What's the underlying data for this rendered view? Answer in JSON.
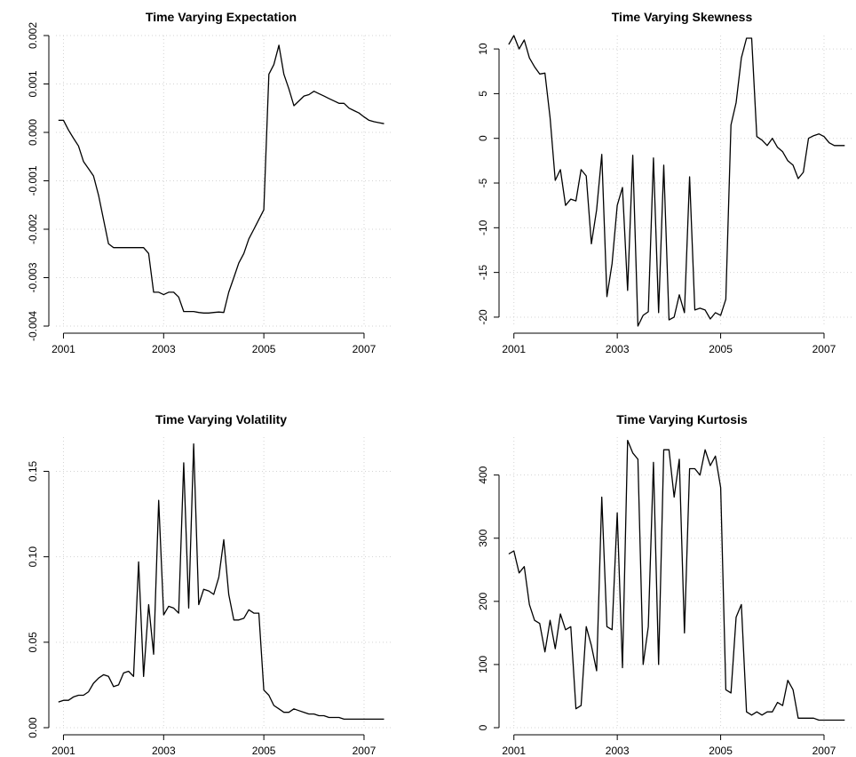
{
  "chart_data": [
    {
      "type": "line",
      "title": "Time Varying Expectation",
      "xlabel": "",
      "ylabel": "",
      "xlim": [
        2000.85,
        2007.55
      ],
      "ylim": [
        -0.004,
        0.002
      ],
      "x_ticks": [
        2001,
        2003,
        2005,
        2007
      ],
      "x_tick_labels": [
        "2001",
        "2003",
        "2005",
        "2007"
      ],
      "y_ticks": [
        -0.004,
        -0.003,
        -0.002,
        -0.001,
        0.0,
        0.001,
        0.002
      ],
      "y_tick_labels": [
        "-0.004",
        "-0.003",
        "-0.002",
        "-0.001",
        "0.000",
        "0.001",
        "0.002"
      ],
      "grid": true,
      "series": [
        {
          "x": [
            2000.9,
            2001.0,
            2001.1,
            2001.2,
            2001.3,
            2001.4,
            2001.5,
            2001.6,
            2001.7,
            2001.8,
            2001.9,
            2002.0,
            2002.1,
            2002.2,
            2002.3,
            2002.4,
            2002.5,
            2002.6,
            2002.7,
            2002.8,
            2002.9,
            2003.0,
            2003.1,
            2003.2,
            2003.3,
            2003.4,
            2003.5,
            2003.6,
            2003.7,
            2003.8,
            2003.9,
            2004.0,
            2004.1,
            2004.2,
            2004.3,
            2004.4,
            2004.5,
            2004.6,
            2004.7,
            2004.8,
            2004.9,
            2005.0,
            2005.1,
            2005.2,
            2005.3,
            2005.4,
            2005.5,
            2005.6,
            2005.7,
            2005.8,
            2005.9,
            2006.0,
            2006.1,
            2006.2,
            2006.3,
            2006.4,
            2006.5,
            2006.6,
            2006.7,
            2006.8,
            2006.9,
            2007.0,
            2007.1,
            2007.2,
            2007.3,
            2007.4
          ],
          "y": [
            0.00025,
            0.00025,
            5e-05,
            -0.00012,
            -0.00028,
            -0.0006,
            -0.00075,
            -0.0009,
            -0.0013,
            -0.0018,
            -0.0023,
            -0.00238,
            -0.00238,
            -0.00238,
            -0.00238,
            -0.00238,
            -0.00238,
            -0.00238,
            -0.0025,
            -0.0033,
            -0.0033,
            -0.00335,
            -0.0033,
            -0.0033,
            -0.0034,
            -0.0037,
            -0.0037,
            -0.0037,
            -0.00372,
            -0.00373,
            -0.00373,
            -0.00372,
            -0.00371,
            -0.00372,
            -0.0033,
            -0.003,
            -0.0027,
            -0.0025,
            -0.0022,
            -0.002,
            -0.0018,
            -0.0016,
            0.0012,
            0.0014,
            0.0018,
            0.0012,
            0.0009,
            0.00055,
            0.00065,
            0.00075,
            0.00078,
            0.00085,
            0.0008,
            0.00075,
            0.0007,
            0.00065,
            0.0006,
            0.0006,
            0.0005,
            0.00045,
            0.0004,
            0.00032,
            0.00025,
            0.00022,
            0.0002,
            0.00018
          ]
        }
      ]
    },
    {
      "type": "line",
      "title": "Time Varying Skewness",
      "xlabel": "",
      "ylabel": "",
      "xlim": [
        2000.85,
        2007.55
      ],
      "ylim": [
        -21,
        11.5
      ],
      "x_ticks": [
        2001,
        2003,
        2005,
        2007
      ],
      "x_tick_labels": [
        "2001",
        "2003",
        "2005",
        "2007"
      ],
      "y_ticks": [
        -20,
        -15,
        -10,
        -5,
        0,
        5,
        10
      ],
      "y_tick_labels": [
        "-20",
        "-15",
        "-10",
        "-5",
        "0",
        "5",
        "10"
      ],
      "grid": true,
      "series": [
        {
          "x": [
            2000.9,
            2001.0,
            2001.1,
            2001.2,
            2001.3,
            2001.4,
            2001.5,
            2001.6,
            2001.7,
            2001.8,
            2001.9,
            2002.0,
            2002.1,
            2002.2,
            2002.3,
            2002.4,
            2002.5,
            2002.6,
            2002.7,
            2002.8,
            2002.9,
            2003.0,
            2003.1,
            2003.2,
            2003.3,
            2003.4,
            2003.5,
            2003.6,
            2003.7,
            2003.8,
            2003.9,
            2004.0,
            2004.1,
            2004.2,
            2004.3,
            2004.4,
            2004.5,
            2004.6,
            2004.7,
            2004.8,
            2004.9,
            2005.0,
            2005.1,
            2005.2,
            2005.3,
            2005.4,
            2005.5,
            2005.6,
            2005.7,
            2005.8,
            2005.9,
            2006.0,
            2006.1,
            2006.2,
            2006.3,
            2006.4,
            2006.5,
            2006.6,
            2006.7,
            2006.8,
            2006.9,
            2007.0,
            2007.1,
            2007.2,
            2007.3,
            2007.4
          ],
          "y": [
            10.5,
            11.5,
            10.0,
            11.0,
            9.0,
            8.0,
            7.2,
            7.3,
            2.3,
            -4.7,
            -3.5,
            -7.5,
            -6.8,
            -7.0,
            -3.5,
            -4.2,
            -11.8,
            -8.0,
            -1.8,
            -17.7,
            -14.0,
            -7.5,
            -5.5,
            -17.0,
            -1.9,
            -21.0,
            -19.8,
            -19.4,
            -2.2,
            -19.5,
            -3.0,
            -20.3,
            -20.0,
            -17.5,
            -19.5,
            -4.3,
            -19.2,
            -19.0,
            -19.2,
            -20.2,
            -19.5,
            -19.8,
            -18.0,
            1.5,
            4.0,
            9.0,
            11.2,
            11.2,
            0.2,
            -0.2,
            -0.8,
            0.0,
            -1.0,
            -1.5,
            -2.5,
            -3.0,
            -4.5,
            -3.8,
            0.0,
            0.3,
            0.5,
            0.2,
            -0.5,
            -0.8,
            -0.8,
            -0.8
          ]
        }
      ]
    },
    {
      "type": "line",
      "title": "Time Varying Volatility",
      "xlabel": "",
      "ylabel": "",
      "xlim": [
        2000.85,
        2007.55
      ],
      "ylim": [
        0.0,
        0.17
      ],
      "x_ticks": [
        2001,
        2003,
        2005,
        2007
      ],
      "x_tick_labels": [
        "2001",
        "2003",
        "2005",
        "2007"
      ],
      "y_ticks": [
        0.0,
        0.05,
        0.1,
        0.15
      ],
      "y_tick_labels": [
        "0.00",
        "0.05",
        "0.10",
        "0.15"
      ],
      "grid": true,
      "series": [
        {
          "x": [
            2000.9,
            2001.0,
            2001.1,
            2001.2,
            2001.3,
            2001.4,
            2001.5,
            2001.6,
            2001.7,
            2001.8,
            2001.9,
            2002.0,
            2002.1,
            2002.2,
            2002.3,
            2002.4,
            2002.5,
            2002.6,
            2002.7,
            2002.8,
            2002.9,
            2003.0,
            2003.1,
            2003.2,
            2003.3,
            2003.4,
            2003.5,
            2003.6,
            2003.7,
            2003.8,
            2003.9,
            2004.0,
            2004.1,
            2004.2,
            2004.3,
            2004.4,
            2004.5,
            2004.6,
            2004.7,
            2004.8,
            2004.9,
            2005.0,
            2005.1,
            2005.2,
            2005.3,
            2005.4,
            2005.5,
            2005.6,
            2005.7,
            2005.8,
            2005.9,
            2006.0,
            2006.1,
            2006.2,
            2006.3,
            2006.4,
            2006.5,
            2006.6,
            2006.7,
            2006.8,
            2006.9,
            2007.0,
            2007.1,
            2007.2,
            2007.3,
            2007.4
          ],
          "y": [
            0.015,
            0.016,
            0.016,
            0.018,
            0.019,
            0.019,
            0.021,
            0.026,
            0.029,
            0.031,
            0.03,
            0.024,
            0.025,
            0.032,
            0.033,
            0.03,
            0.097,
            0.03,
            0.072,
            0.043,
            0.133,
            0.066,
            0.071,
            0.07,
            0.067,
            0.155,
            0.07,
            0.166,
            0.072,
            0.081,
            0.08,
            0.078,
            0.088,
            0.11,
            0.078,
            0.063,
            0.063,
            0.064,
            0.069,
            0.067,
            0.067,
            0.022,
            0.019,
            0.013,
            0.011,
            0.009,
            0.009,
            0.011,
            0.01,
            0.009,
            0.008,
            0.008,
            0.007,
            0.007,
            0.006,
            0.006,
            0.006,
            0.005,
            0.005,
            0.005,
            0.005,
            0.005,
            0.005,
            0.005,
            0.005,
            0.005
          ]
        }
      ]
    },
    {
      "type": "line",
      "title": "Time Varying Kurtosis",
      "xlabel": "",
      "ylabel": "",
      "xlim": [
        2000.85,
        2007.55
      ],
      "ylim": [
        0,
        460
      ],
      "x_ticks": [
        2001,
        2003,
        2005,
        2007
      ],
      "x_tick_labels": [
        "2001",
        "2003",
        "2005",
        "2007"
      ],
      "y_ticks": [
        0,
        100,
        200,
        300,
        400
      ],
      "y_tick_labels": [
        "0",
        "100",
        "200",
        "300",
        "400"
      ],
      "grid": true,
      "series": [
        {
          "x": [
            2000.9,
            2001.0,
            2001.1,
            2001.2,
            2001.3,
            2001.4,
            2001.5,
            2001.6,
            2001.7,
            2001.8,
            2001.9,
            2002.0,
            2002.1,
            2002.2,
            2002.3,
            2002.4,
            2002.5,
            2002.6,
            2002.7,
            2002.8,
            2002.9,
            2003.0,
            2003.1,
            2003.2,
            2003.3,
            2003.4,
            2003.5,
            2003.6,
            2003.7,
            2003.8,
            2003.9,
            2004.0,
            2004.1,
            2004.2,
            2004.3,
            2004.4,
            2004.5,
            2004.6,
            2004.7,
            2004.8,
            2004.9,
            2005.0,
            2005.1,
            2005.2,
            2005.3,
            2005.4,
            2005.5,
            2005.6,
            2005.7,
            2005.8,
            2005.9,
            2006.0,
            2006.1,
            2006.2,
            2006.3,
            2006.4,
            2006.5,
            2006.6,
            2006.7,
            2006.8,
            2006.9,
            2007.0,
            2007.1,
            2007.2,
            2007.3,
            2007.4
          ],
          "y": [
            275,
            280,
            245,
            255,
            195,
            170,
            165,
            120,
            170,
            125,
            180,
            155,
            160,
            30,
            35,
            160,
            130,
            90,
            365,
            160,
            155,
            340,
            95,
            455,
            435,
            425,
            100,
            160,
            420,
            100,
            440,
            440,
            365,
            425,
            150,
            410,
            410,
            400,
            440,
            415,
            430,
            380,
            60,
            55,
            175,
            195,
            25,
            20,
            25,
            20,
            25,
            25,
            40,
            35,
            75,
            60,
            15,
            15,
            15,
            15,
            12,
            12,
            12,
            12,
            12,
            12
          ]
        }
      ]
    }
  ]
}
